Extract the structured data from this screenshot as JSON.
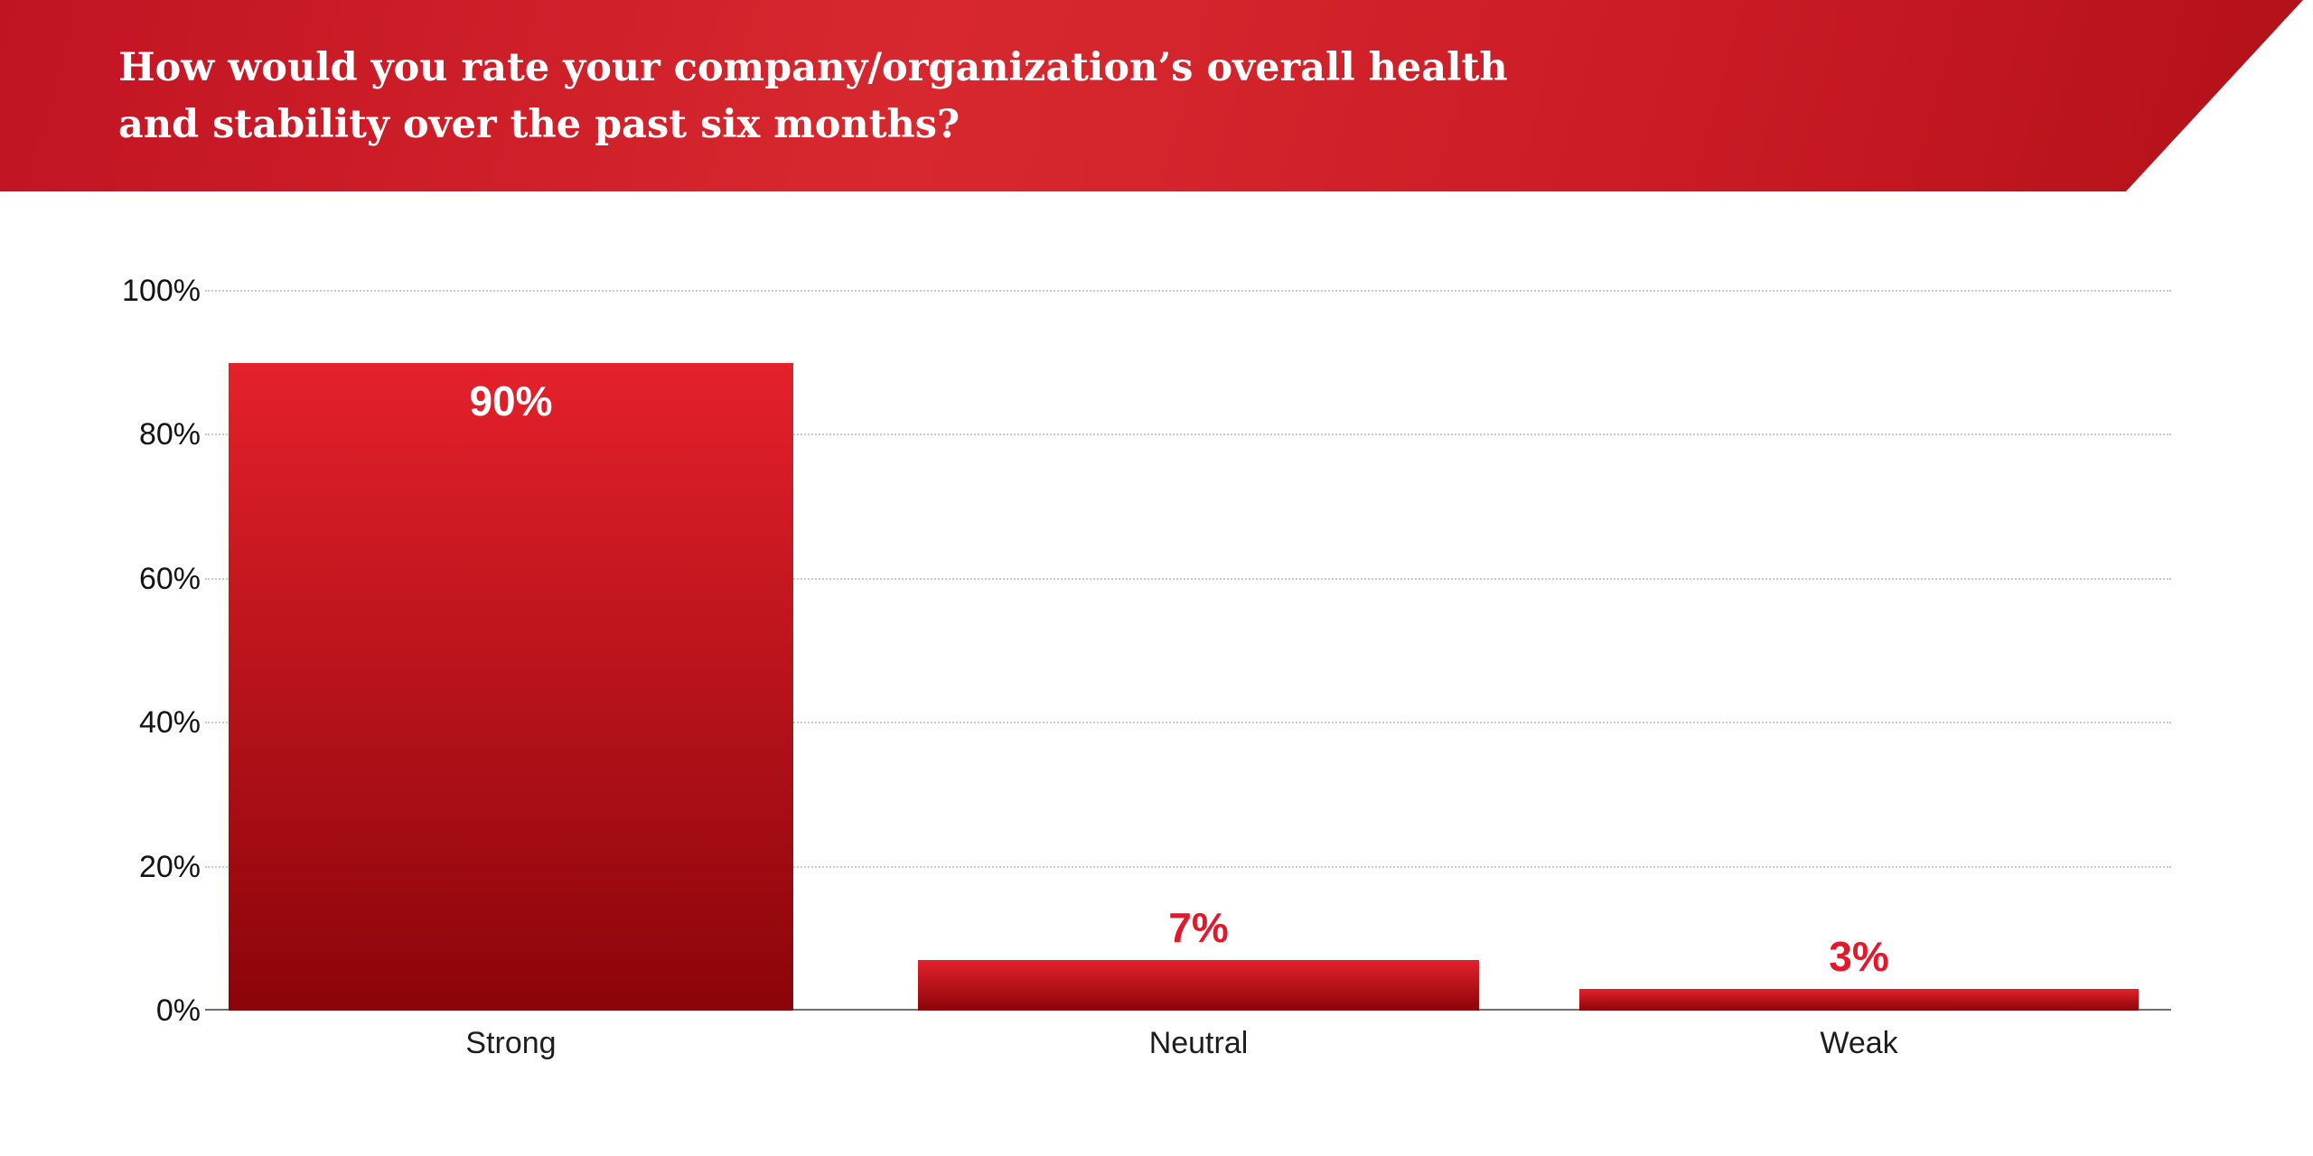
{
  "header": {
    "title_line1": "How would you rate your company/organization’s overall health",
    "title_line2": "and stability over the past six months?",
    "text_color": "#ffffff",
    "background_color": "#cc1a24"
  },
  "chart_data": {
    "type": "bar",
    "title": "How would you rate your company/organization’s overall health and stability over the past six months?",
    "categories": [
      "Strong",
      "Neutral",
      "Weak"
    ],
    "values": [
      90,
      7,
      3
    ],
    "value_labels": [
      "90%",
      "7%",
      "3%"
    ],
    "xlabel": "",
    "ylabel": "",
    "ylim": [
      0,
      100
    ],
    "yticks": [
      0,
      20,
      40,
      60,
      80,
      100
    ],
    "ytick_labels": [
      "0%",
      "20%",
      "40%",
      "60%",
      "80%",
      "100%"
    ],
    "grid": "horizontal dotted",
    "legend": "none",
    "bar_color_top": "#e4212b",
    "bar_color_bottom": "#8b040a",
    "value_label_inside_color": "#ffffff",
    "value_label_outside_color": "#e3192b",
    "axis_line_color": "#6f6f6f"
  }
}
